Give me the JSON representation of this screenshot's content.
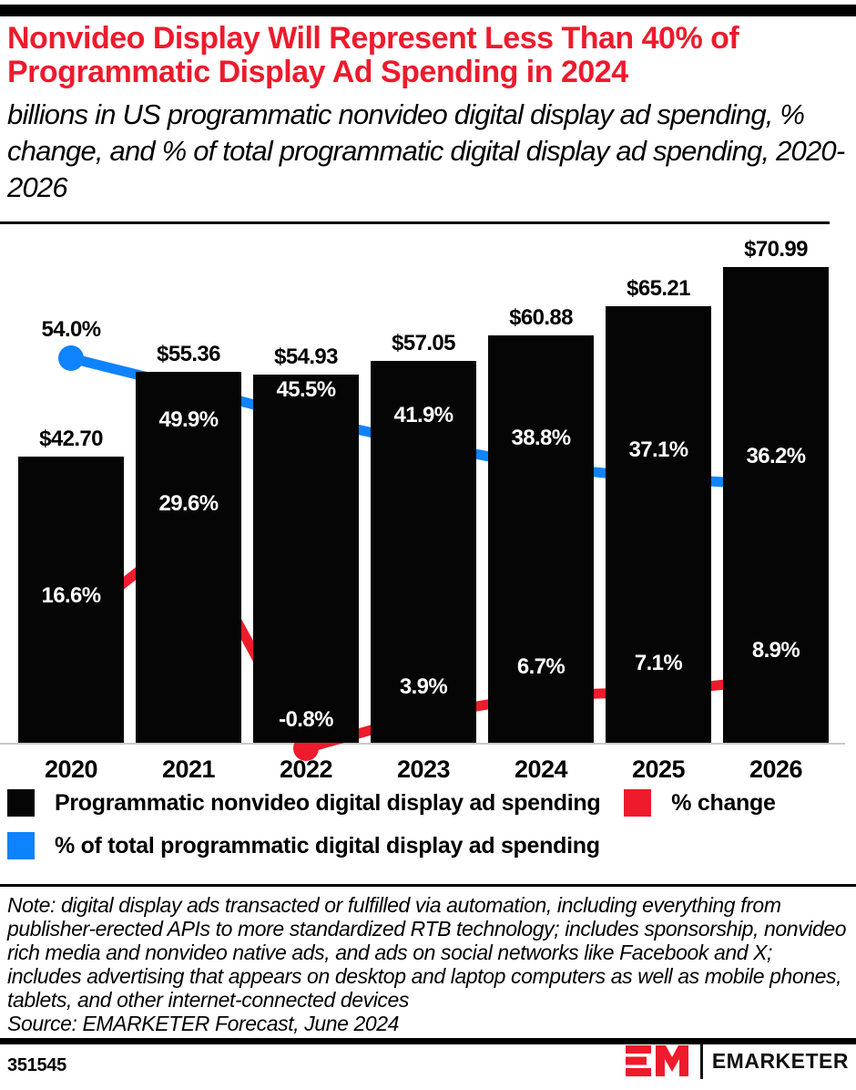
{
  "header": {
    "title": "Nonvideo Display Will Represent Less Than 40% of Programmatic Display Ad Spending in 2024",
    "subtitle": "billions in US programmatic nonvideo digital display ad spending, % change, and % of total programmatic digital display ad spending, 2020-2026"
  },
  "chart_data": {
    "type": "bar",
    "categories": [
      "2020",
      "2021",
      "2022",
      "2023",
      "2024",
      "2025",
      "2026"
    ],
    "series": [
      {
        "id": "spending",
        "type": "bar",
        "name": "Programmatic nonvideo digital display ad spending",
        "color": "#050505",
        "values": [
          42.7,
          55.36,
          54.93,
          57.05,
          60.88,
          65.21,
          70.99
        ],
        "labels": [
          "$42.70",
          "$55.36",
          "$54.93",
          "$57.05",
          "$60.88",
          "$65.21",
          "$70.99"
        ],
        "unit": "billions USD"
      },
      {
        "id": "pct_change",
        "type": "line",
        "name": "% change",
        "color": "#ed1b2c",
        "values": [
          16.6,
          29.6,
          -0.8,
          3.9,
          6.7,
          7.1,
          8.9
        ],
        "labels": [
          "16.6%",
          "29.6%",
          "-0.8%",
          "3.9%",
          "6.7%",
          "7.1%",
          "8.9%"
        ]
      },
      {
        "id": "pct_of_total",
        "type": "line",
        "name": "% of total programmatic digital display ad spending",
        "color": "#0f83fb",
        "values": [
          54.0,
          49.9,
          45.5,
          41.9,
          38.8,
          37.1,
          36.2
        ],
        "labels": [
          "54.0%",
          "49.9%",
          "45.5%",
          "41.9%",
          "38.8%",
          "37.1%",
          "36.2%"
        ]
      }
    ],
    "xlabel": "",
    "ylabel": "",
    "grid": false,
    "legend_position": "bottom"
  },
  "note": "Note: digital display ads transacted or fulfilled via automation, including everything from publisher-erected APIs to more standardized RTB technology; includes sponsorship, nonvideo rich media and nonvideo native ads, and ads on social networks like Facebook and X; includes advertising that appears on desktop and laptop computers as well as mobile phones, tablets, and other internet-connected devices",
  "source": "Source: EMARKETER Forecast, June 2024",
  "footer": {
    "chart_id": "351545",
    "brand": "EMARKETER"
  },
  "colors": {
    "accent_red": "#ed1b2c",
    "accent_blue": "#0f83fb",
    "bar_black": "#050505",
    "axis_gray": "#c9c9c9"
  }
}
